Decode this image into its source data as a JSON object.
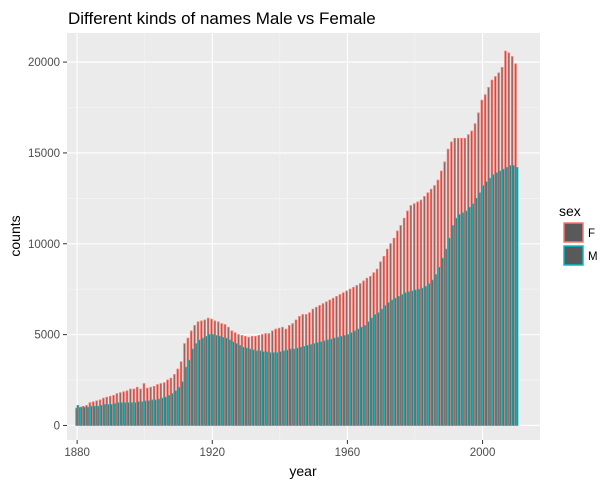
{
  "chart_data": {
    "type": "bar",
    "title": "Different kinds of names Male vs Female",
    "xlabel": "year",
    "ylabel": "counts",
    "xlim": [
      1877,
      2017
    ],
    "ylim": [
      -800,
      21600
    ],
    "x_ticks": [
      1880,
      1920,
      1960,
      2000
    ],
    "y_ticks": [
      0,
      5000,
      10000,
      15000,
      20000
    ],
    "x_tick_labels": [
      "1880",
      "1920",
      "1960",
      "2000"
    ],
    "y_tick_labels": [
      "0",
      "5000",
      "10000",
      "15000",
      "20000"
    ],
    "grid": true,
    "legend": {
      "title": "sex",
      "placement": "right",
      "entries": [
        {
          "label": "F",
          "outline": "#F8766D"
        },
        {
          "label": "M",
          "outline": "#00BFC4"
        }
      ]
    },
    "fill_color": "#595959",
    "years": [
      1880,
      1881,
      1882,
      1883,
      1884,
      1885,
      1886,
      1887,
      1888,
      1889,
      1890,
      1891,
      1892,
      1893,
      1894,
      1895,
      1896,
      1897,
      1898,
      1899,
      1900,
      1901,
      1902,
      1903,
      1904,
      1905,
      1906,
      1907,
      1908,
      1909,
      1910,
      1911,
      1912,
      1913,
      1914,
      1915,
      1916,
      1917,
      1918,
      1919,
      1920,
      1921,
      1922,
      1923,
      1924,
      1925,
      1926,
      1927,
      1928,
      1929,
      1930,
      1931,
      1932,
      1933,
      1934,
      1935,
      1936,
      1937,
      1938,
      1939,
      1940,
      1941,
      1942,
      1943,
      1944,
      1945,
      1946,
      1947,
      1948,
      1949,
      1950,
      1951,
      1952,
      1953,
      1954,
      1955,
      1956,
      1957,
      1958,
      1959,
      1960,
      1961,
      1962,
      1963,
      1964,
      1965,
      1966,
      1967,
      1968,
      1969,
      1970,
      1971,
      1972,
      1973,
      1974,
      1975,
      1976,
      1977,
      1978,
      1979,
      1980,
      1981,
      1982,
      1983,
      1984,
      1985,
      1986,
      1987,
      1988,
      1989,
      1990,
      1991,
      1992,
      1993,
      1994,
      1995,
      1996,
      1997,
      1998,
      1999,
      2000,
      2001,
      2002,
      2003,
      2004,
      2005,
      2006,
      2007,
      2008,
      2009,
      2010
    ],
    "series": [
      {
        "name": "F",
        "values": [
          950,
          1000,
          1050,
          1100,
          1250,
          1300,
          1350,
          1400,
          1500,
          1550,
          1600,
          1650,
          1750,
          1800,
          1850,
          1900,
          2000,
          2000,
          2100,
          2000,
          2300,
          2050,
          2100,
          2150,
          2250,
          2300,
          2350,
          2500,
          2600,
          2800,
          3100,
          3500,
          4500,
          4800,
          5200,
          5500,
          5700,
          5750,
          5800,
          5900,
          5850,
          5750,
          5700,
          5600,
          5550,
          5400,
          5200,
          5100,
          5000,
          4950,
          4900,
          4850,
          4900,
          4900,
          4950,
          5000,
          5050,
          5050,
          5200,
          5300,
          5350,
          5400,
          5300,
          5500,
          5600,
          5800,
          6000,
          6100,
          6100,
          6200,
          6400,
          6500,
          6600,
          6700,
          6800,
          6900,
          7000,
          7100,
          7200,
          7300,
          7400,
          7500,
          7600,
          7700,
          7800,
          7950,
          8100,
          8200,
          8400,
          8600,
          9000,
          9300,
          9700,
          10000,
          10300,
          10700,
          11000,
          11400,
          11800,
          12100,
          12200,
          12300,
          12400,
          12600,
          12800,
          13000,
          13200,
          13500,
          14000,
          14500,
          15200,
          15600,
          15800,
          15800,
          15800,
          15800,
          16000,
          16200,
          16600,
          17200,
          17900,
          18200,
          18600,
          19000,
          19200,
          19400,
          19700,
          20600,
          20500,
          20300,
          19900
        ]
      },
      {
        "name": "M",
        "values": [
          1100,
          1000,
          1000,
          1000,
          1050,
          1050,
          1050,
          1100,
          1150,
          1150,
          1150,
          1200,
          1250,
          1250,
          1250,
          1250,
          1250,
          1250,
          1300,
          1300,
          1350,
          1350,
          1400,
          1400,
          1450,
          1500,
          1550,
          1650,
          1750,
          1900,
          2100,
          2400,
          3200,
          3600,
          4200,
          4500,
          4700,
          4800,
          4900,
          5000,
          5000,
          4950,
          4900,
          4850,
          4800,
          4700,
          4600,
          4500,
          4400,
          4300,
          4250,
          4200,
          4150,
          4100,
          4100,
          4050,
          4050,
          4000,
          4000,
          4000,
          4050,
          4100,
          4150,
          4200,
          4200,
          4250,
          4300,
          4350,
          4400,
          4450,
          4500,
          4550,
          4600,
          4650,
          4700,
          4750,
          4800,
          4850,
          4900,
          4950,
          5000,
          5100,
          5200,
          5300,
          5400,
          5500,
          5700,
          5900,
          6100,
          6200,
          6400,
          6600,
          6750,
          6900,
          7000,
          7100,
          7200,
          7300,
          7350,
          7400,
          7450,
          7500,
          7550,
          7650,
          7800,
          8000,
          8300,
          8700,
          9200,
          9700,
          10300,
          11000,
          11400,
          11600,
          11700,
          11800,
          12000,
          12200,
          12500,
          12800,
          13200,
          13400,
          13600,
          13800,
          13900,
          14000,
          14100,
          14200,
          14300,
          14300,
          14200
        ]
      }
    ]
  }
}
